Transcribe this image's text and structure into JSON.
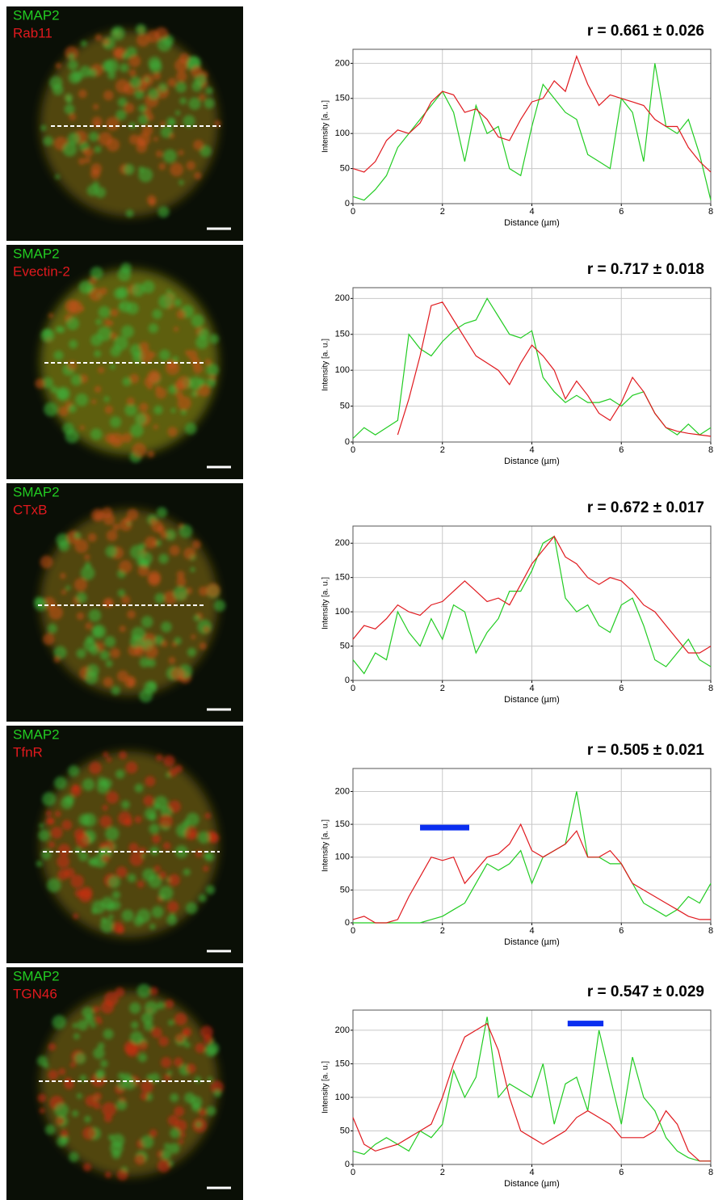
{
  "chart_data": [
    {
      "type": "line",
      "title": "r = 0.661 ± 0.026",
      "x_label": "Distance (µm)",
      "y_label": "Intensity [a. u.]",
      "x": [
        0,
        0.25,
        0.5,
        0.75,
        1,
        1.25,
        1.5,
        1.75,
        2,
        2.25,
        2.5,
        2.75,
        3,
        3.25,
        3.5,
        3.75,
        4,
        4.25,
        4.5,
        4.75,
        5,
        5.25,
        5.5,
        5.75,
        6,
        6.25,
        6.5,
        6.75,
        7,
        7.25,
        7.5,
        7.75,
        8
      ],
      "xlim": [
        0,
        8
      ],
      "xticks": [
        0,
        2,
        4,
        6,
        8
      ],
      "ylim": [
        0,
        220
      ],
      "yticks": [
        0,
        50,
        100,
        150,
        200
      ],
      "grid": true,
      "series": [
        {
          "name": "SMAP2",
          "color": "#22cc22",
          "values": [
            10,
            5,
            20,
            40,
            80,
            100,
            120,
            140,
            160,
            130,
            60,
            140,
            100,
            110,
            50,
            40,
            110,
            170,
            150,
            130,
            120,
            70,
            60,
            50,
            150,
            130,
            60,
            200,
            110,
            100,
            120,
            70,
            5
          ]
        },
        {
          "name": "Rab11",
          "color": "#e0191e",
          "values": [
            50,
            45,
            60,
            90,
            105,
            100,
            115,
            145,
            160,
            155,
            130,
            135,
            120,
            95,
            90,
            120,
            145,
            150,
            175,
            160,
            210,
            170,
            140,
            155,
            150,
            145,
            140,
            120,
            110,
            110,
            80,
            60,
            45
          ]
        }
      ]
    },
    {
      "type": "line",
      "title": "r = 0.717 ± 0.018",
      "x_label": "Distance (µm)",
      "y_label": "Intensity [a. u.]",
      "x": [
        0,
        0.25,
        0.5,
        0.75,
        1,
        1.25,
        1.5,
        1.75,
        2,
        2.25,
        2.5,
        2.75,
        3,
        3.25,
        3.5,
        3.75,
        4,
        4.25,
        4.5,
        4.75,
        5,
        5.25,
        5.5,
        5.75,
        6,
        6.25,
        6.5,
        6.75,
        7,
        7.25,
        7.5,
        7.75,
        8
      ],
      "xlim": [
        0,
        8
      ],
      "xticks": [
        0,
        2,
        4,
        6,
        8
      ],
      "ylim": [
        0,
        215
      ],
      "yticks": [
        0,
        50,
        100,
        150,
        200
      ],
      "grid": true,
      "series": [
        {
          "name": "SMAP2",
          "color": "#22cc22",
          "values": [
            5,
            20,
            10,
            20,
            30,
            150,
            130,
            120,
            140,
            155,
            165,
            170,
            200,
            175,
            150,
            145,
            155,
            90,
            70,
            55,
            65,
            55,
            55,
            60,
            50,
            65,
            70,
            40,
            20,
            10,
            25,
            10,
            20
          ]
        },
        {
          "name": "Evectin-2",
          "color": "#e0191e",
          "values": [
            null,
            null,
            null,
            null,
            10,
            60,
            120,
            190,
            195,
            170,
            145,
            120,
            110,
            100,
            80,
            110,
            135,
            120,
            100,
            60,
            85,
            65,
            40,
            30,
            55,
            90,
            70,
            40,
            20,
            15,
            12,
            10,
            8
          ]
        }
      ]
    },
    {
      "type": "line",
      "title": "r = 0.672 ± 0.017",
      "x_label": "Distance (µm)",
      "y_label": "Intensity [a. u.]",
      "x": [
        0,
        0.25,
        0.5,
        0.75,
        1,
        1.25,
        1.5,
        1.75,
        2,
        2.25,
        2.5,
        2.75,
        3,
        3.25,
        3.5,
        3.75,
        4,
        4.25,
        4.5,
        4.75,
        5,
        5.25,
        5.5,
        5.75,
        6,
        6.25,
        6.5,
        6.75,
        7,
        7.25,
        7.5,
        7.75,
        8
      ],
      "xlim": [
        0,
        8
      ],
      "xticks": [
        0,
        2,
        4,
        6,
        8
      ],
      "ylim": [
        0,
        225
      ],
      "yticks": [
        0,
        50,
        100,
        150,
        200
      ],
      "grid": true,
      "series": [
        {
          "name": "SMAP2",
          "color": "#22cc22",
          "values": [
            30,
            10,
            40,
            30,
            100,
            70,
            50,
            90,
            60,
            110,
            100,
            40,
            70,
            90,
            130,
            130,
            160,
            200,
            210,
            120,
            100,
            110,
            80,
            70,
            110,
            120,
            80,
            30,
            20,
            40,
            60,
            30,
            20
          ]
        },
        {
          "name": "CTxB",
          "color": "#e0191e",
          "values": [
            60,
            80,
            75,
            90,
            110,
            100,
            95,
            110,
            115,
            130,
            145,
            130,
            115,
            120,
            110,
            140,
            170,
            190,
            210,
            180,
            170,
            150,
            140,
            150,
            145,
            130,
            110,
            100,
            80,
            60,
            40,
            40,
            50
          ]
        }
      ]
    },
    {
      "type": "line",
      "title": "r = 0.505 ± 0.021",
      "x_label": "Distance (µm)",
      "y_label": "Intensity [a. u.]",
      "x": [
        0,
        0.25,
        0.5,
        0.75,
        1,
        1.25,
        1.5,
        1.75,
        2,
        2.25,
        2.5,
        2.75,
        3,
        3.25,
        3.5,
        3.75,
        4,
        4.25,
        4.5,
        4.75,
        5,
        5.25,
        5.5,
        5.75,
        6,
        6.25,
        6.5,
        6.75,
        7,
        7.25,
        7.5,
        7.75,
        8
      ],
      "xlim": [
        0,
        8
      ],
      "xticks": [
        0,
        2,
        4,
        6,
        8
      ],
      "ylim": [
        0,
        235
      ],
      "yticks": [
        0,
        50,
        100,
        150,
        200
      ],
      "grid": true,
      "highlight": {
        "x": [
          1.5,
          2.6
        ],
        "y": 145,
        "color": "#0a2ef0"
      },
      "series": [
        {
          "name": "SMAP2",
          "color": "#22cc22",
          "values": [
            0,
            0,
            0,
            0,
            0,
            0,
            0,
            5,
            10,
            20,
            30,
            60,
            90,
            80,
            90,
            110,
            60,
            100,
            110,
            120,
            200,
            100,
            100,
            90,
            90,
            60,
            30,
            20,
            10,
            20,
            40,
            30,
            60
          ]
        },
        {
          "name": "TfnR",
          "color": "#e0191e",
          "values": [
            5,
            10,
            0,
            0,
            5,
            40,
            70,
            100,
            95,
            100,
            60,
            80,
            100,
            105,
            120,
            150,
            110,
            100,
            110,
            120,
            140,
            100,
            100,
            110,
            90,
            60,
            50,
            40,
            30,
            20,
            10,
            5,
            5
          ]
        }
      ]
    },
    {
      "type": "line",
      "title": "r = 0.547 ± 0.029",
      "x_label": "Distance (µm)",
      "y_label": "Intensity [a. u.]",
      "x": [
        0,
        0.25,
        0.5,
        0.75,
        1,
        1.25,
        1.5,
        1.75,
        2,
        2.25,
        2.5,
        2.75,
        3,
        3.25,
        3.5,
        3.75,
        4,
        4.25,
        4.5,
        4.75,
        5,
        5.25,
        5.5,
        5.75,
        6,
        6.25,
        6.5,
        6.75,
        7,
        7.25,
        7.5,
        7.75,
        8
      ],
      "xlim": [
        0,
        8
      ],
      "xticks": [
        0,
        2,
        4,
        6,
        8
      ],
      "ylim": [
        0,
        230
      ],
      "yticks": [
        0,
        50,
        100,
        150,
        200
      ],
      "grid": true,
      "highlight": {
        "x": [
          4.8,
          5.6
        ],
        "y": 210,
        "color": "#0a2ef0"
      },
      "series": [
        {
          "name": "SMAP2",
          "color": "#22cc22",
          "values": [
            20,
            15,
            30,
            40,
            30,
            20,
            50,
            40,
            60,
            140,
            100,
            130,
            220,
            100,
            120,
            110,
            100,
            150,
            60,
            120,
            130,
            80,
            200,
            130,
            60,
            160,
            100,
            80,
            40,
            20,
            10,
            5,
            5
          ]
        },
        {
          "name": "TGN46",
          "color": "#e0191e",
          "values": [
            70,
            30,
            20,
            25,
            30,
            40,
            50,
            60,
            100,
            150,
            190,
            200,
            210,
            170,
            100,
            50,
            40,
            30,
            40,
            50,
            70,
            80,
            70,
            60,
            40,
            40,
            40,
            50,
            80,
            60,
            20,
            5,
            5
          ]
        }
      ]
    }
  ]
}
